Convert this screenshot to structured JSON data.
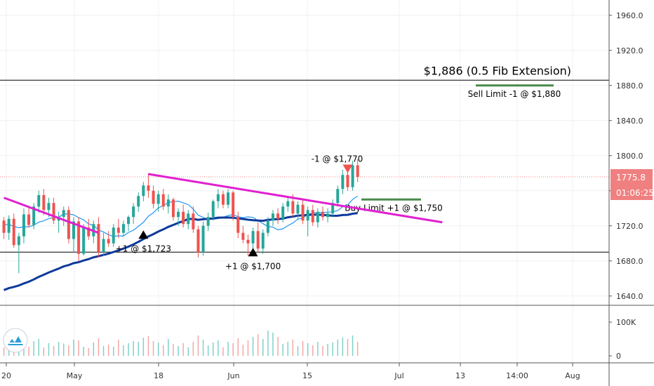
{
  "chart_data": {
    "type": "candlestick",
    "instrument_note": "",
    "x_ticks": [
      "20",
      "May",
      "18",
      "Jun",
      "15",
      "Jul",
      "13",
      "14:00",
      "Aug"
    ],
    "y_ticks": [
      "1960.0",
      "1920.0",
      "1880.0",
      "1840.0",
      "1800.0",
      "1760.0",
      "1720.0",
      "1680.0",
      "1640.0"
    ],
    "ylim": [
      1627,
      1975
    ],
    "volume_ticks": [
      "100K",
      "0"
    ],
    "current_price": {
      "value": 1775.8,
      "label": "1775.8",
      "countdown": "01:06:25",
      "color": "#f08080"
    },
    "horizontal_levels": [
      {
        "value": 1886,
        "label": "$1,886 (0.5 Fib Extension)",
        "color": "#000000"
      },
      {
        "value": 1690,
        "label": "",
        "color": "#000000"
      }
    ],
    "orders": [
      {
        "value": 1880,
        "label": "Sell Limit -1 @ $1,880",
        "color": "#4a8a4a"
      },
      {
        "value": 1750,
        "label": "Buy Limit +1 @ $1,750",
        "color": "#4a8a4a"
      }
    ],
    "trade_markers": [
      {
        "date": "Apr 27",
        "value": 1710,
        "dir": "up",
        "label": "+1 @ $1,723"
      },
      {
        "date": "Jun 5",
        "value": 1690,
        "dir": "up",
        "label": "+1 @ $1,700"
      },
      {
        "date": "Jun 19",
        "value": 1785,
        "dir": "down",
        "label": "-1 @ $1,770"
      }
    ],
    "trendlines": [
      {
        "color": "#e020d0",
        "points": [
          [
            0,
            1752
          ],
          [
            19,
            1712
          ]
        ]
      },
      {
        "color": "#e020d0",
        "points": [
          [
            29,
            1779
          ],
          [
            88,
            1724
          ]
        ]
      }
    ],
    "series": [
      {
        "name": "",
        "type": "candles",
        "up_color": "#26a69a",
        "down_color": "#ef5350"
      },
      {
        "name": "",
        "type": "ma_fast",
        "color": "#2196f3"
      },
      {
        "name": "",
        "type": "ma_slow",
        "color": "#0d3a9a"
      },
      {
        "name": "",
        "type": "volume",
        "up_color": "#7fd1c9",
        "down_color": "#f4a8a6"
      }
    ],
    "candles": [
      [
        1726,
        1730,
        1705,
        1712
      ],
      [
        1712,
        1732,
        1704,
        1728
      ],
      [
        1728,
        1734,
        1695,
        1698
      ],
      [
        1698,
        1712,
        1666,
        1708
      ],
      [
        1708,
        1740,
        1700,
        1733
      ],
      [
        1733,
        1740,
        1718,
        1721
      ],
      [
        1721,
        1746,
        1716,
        1742
      ],
      [
        1742,
        1760,
        1735,
        1755
      ],
      [
        1755,
        1762,
        1732,
        1738
      ],
      [
        1738,
        1752,
        1730,
        1746
      ],
      [
        1746,
        1752,
        1722,
        1726
      ],
      [
        1726,
        1736,
        1712,
        1730
      ],
      [
        1730,
        1742,
        1720,
        1738
      ],
      [
        1738,
        1742,
        1700,
        1705
      ],
      [
        1705,
        1730,
        1690,
        1725
      ],
      [
        1725,
        1730,
        1680,
        1688
      ],
      [
        1688,
        1722,
        1686,
        1718
      ],
      [
        1718,
        1728,
        1704,
        1708
      ],
      [
        1708,
        1726,
        1700,
        1722
      ],
      [
        1722,
        1730,
        1684,
        1690
      ],
      [
        1690,
        1712,
        1686,
        1705
      ],
      [
        1705,
        1714,
        1696,
        1700
      ],
      [
        1700,
        1722,
        1696,
        1718
      ],
      [
        1718,
        1728,
        1706,
        1712
      ],
      [
        1712,
        1726,
        1708,
        1722
      ],
      [
        1722,
        1732,
        1714,
        1730
      ],
      [
        1730,
        1746,
        1722,
        1742
      ],
      [
        1742,
        1758,
        1736,
        1754
      ],
      [
        1754,
        1770,
        1748,
        1766
      ],
      [
        1766,
        1780,
        1752,
        1760
      ],
      [
        1760,
        1766,
        1740,
        1745
      ],
      [
        1745,
        1760,
        1736,
        1756
      ],
      [
        1756,
        1762,
        1738,
        1742
      ],
      [
        1742,
        1756,
        1734,
        1750
      ],
      [
        1750,
        1752,
        1726,
        1730
      ],
      [
        1730,
        1740,
        1720,
        1736
      ],
      [
        1736,
        1744,
        1718,
        1722
      ],
      [
        1722,
        1738,
        1716,
        1734
      ],
      [
        1734,
        1742,
        1712,
        1716
      ],
      [
        1716,
        1720,
        1684,
        1690
      ],
      [
        1690,
        1725,
        1686,
        1720
      ],
      [
        1720,
        1735,
        1714,
        1730
      ],
      [
        1730,
        1750,
        1726,
        1748
      ],
      [
        1748,
        1762,
        1740,
        1756
      ],
      [
        1756,
        1760,
        1740,
        1744
      ],
      [
        1744,
        1762,
        1740,
        1758
      ],
      [
        1758,
        1760,
        1726,
        1730
      ],
      [
        1730,
        1736,
        1706,
        1712
      ],
      [
        1712,
        1720,
        1700,
        1704
      ],
      [
        1704,
        1710,
        1686,
        1700
      ],
      [
        1700,
        1718,
        1694,
        1714
      ],
      [
        1714,
        1724,
        1690,
        1694
      ],
      [
        1694,
        1716,
        1688,
        1712
      ],
      [
        1712,
        1730,
        1708,
        1726
      ],
      [
        1726,
        1738,
        1720,
        1734
      ],
      [
        1734,
        1740,
        1722,
        1728
      ],
      [
        1728,
        1746,
        1724,
        1742
      ],
      [
        1742,
        1752,
        1736,
        1748
      ],
      [
        1748,
        1756,
        1730,
        1734
      ],
      [
        1734,
        1748,
        1728,
        1744
      ],
      [
        1744,
        1750,
        1722,
        1726
      ],
      [
        1726,
        1742,
        1708,
        1738
      ],
      [
        1738,
        1744,
        1720,
        1724
      ],
      [
        1724,
        1740,
        1718,
        1736
      ],
      [
        1736,
        1742,
        1726,
        1730
      ],
      [
        1730,
        1740,
        1724,
        1734
      ],
      [
        1734,
        1750,
        1730,
        1746
      ],
      [
        1746,
        1766,
        1742,
        1762
      ],
      [
        1762,
        1784,
        1756,
        1778
      ],
      [
        1778,
        1788,
        1760,
        1764
      ],
      [
        1764,
        1794,
        1760,
        1789
      ],
      [
        1789,
        1796,
        1770,
        1775.8
      ]
    ],
    "volume": [
      24,
      32,
      38,
      54,
      30,
      26,
      42,
      48,
      24,
      36,
      28,
      40,
      35,
      30,
      46,
      44,
      26,
      22,
      38,
      50,
      28,
      32,
      26,
      46,
      30,
      36,
      42,
      40,
      52,
      56,
      42,
      38,
      30,
      48,
      34,
      28,
      36,
      24,
      40,
      58,
      46,
      30,
      38,
      44,
      24,
      40,
      36,
      50,
      32,
      44,
      54,
      62,
      48,
      72,
      66,
      54,
      34,
      40,
      46,
      28,
      42,
      36,
      30,
      40,
      28,
      34,
      38,
      46,
      52,
      48,
      58,
      40
    ]
  }
}
